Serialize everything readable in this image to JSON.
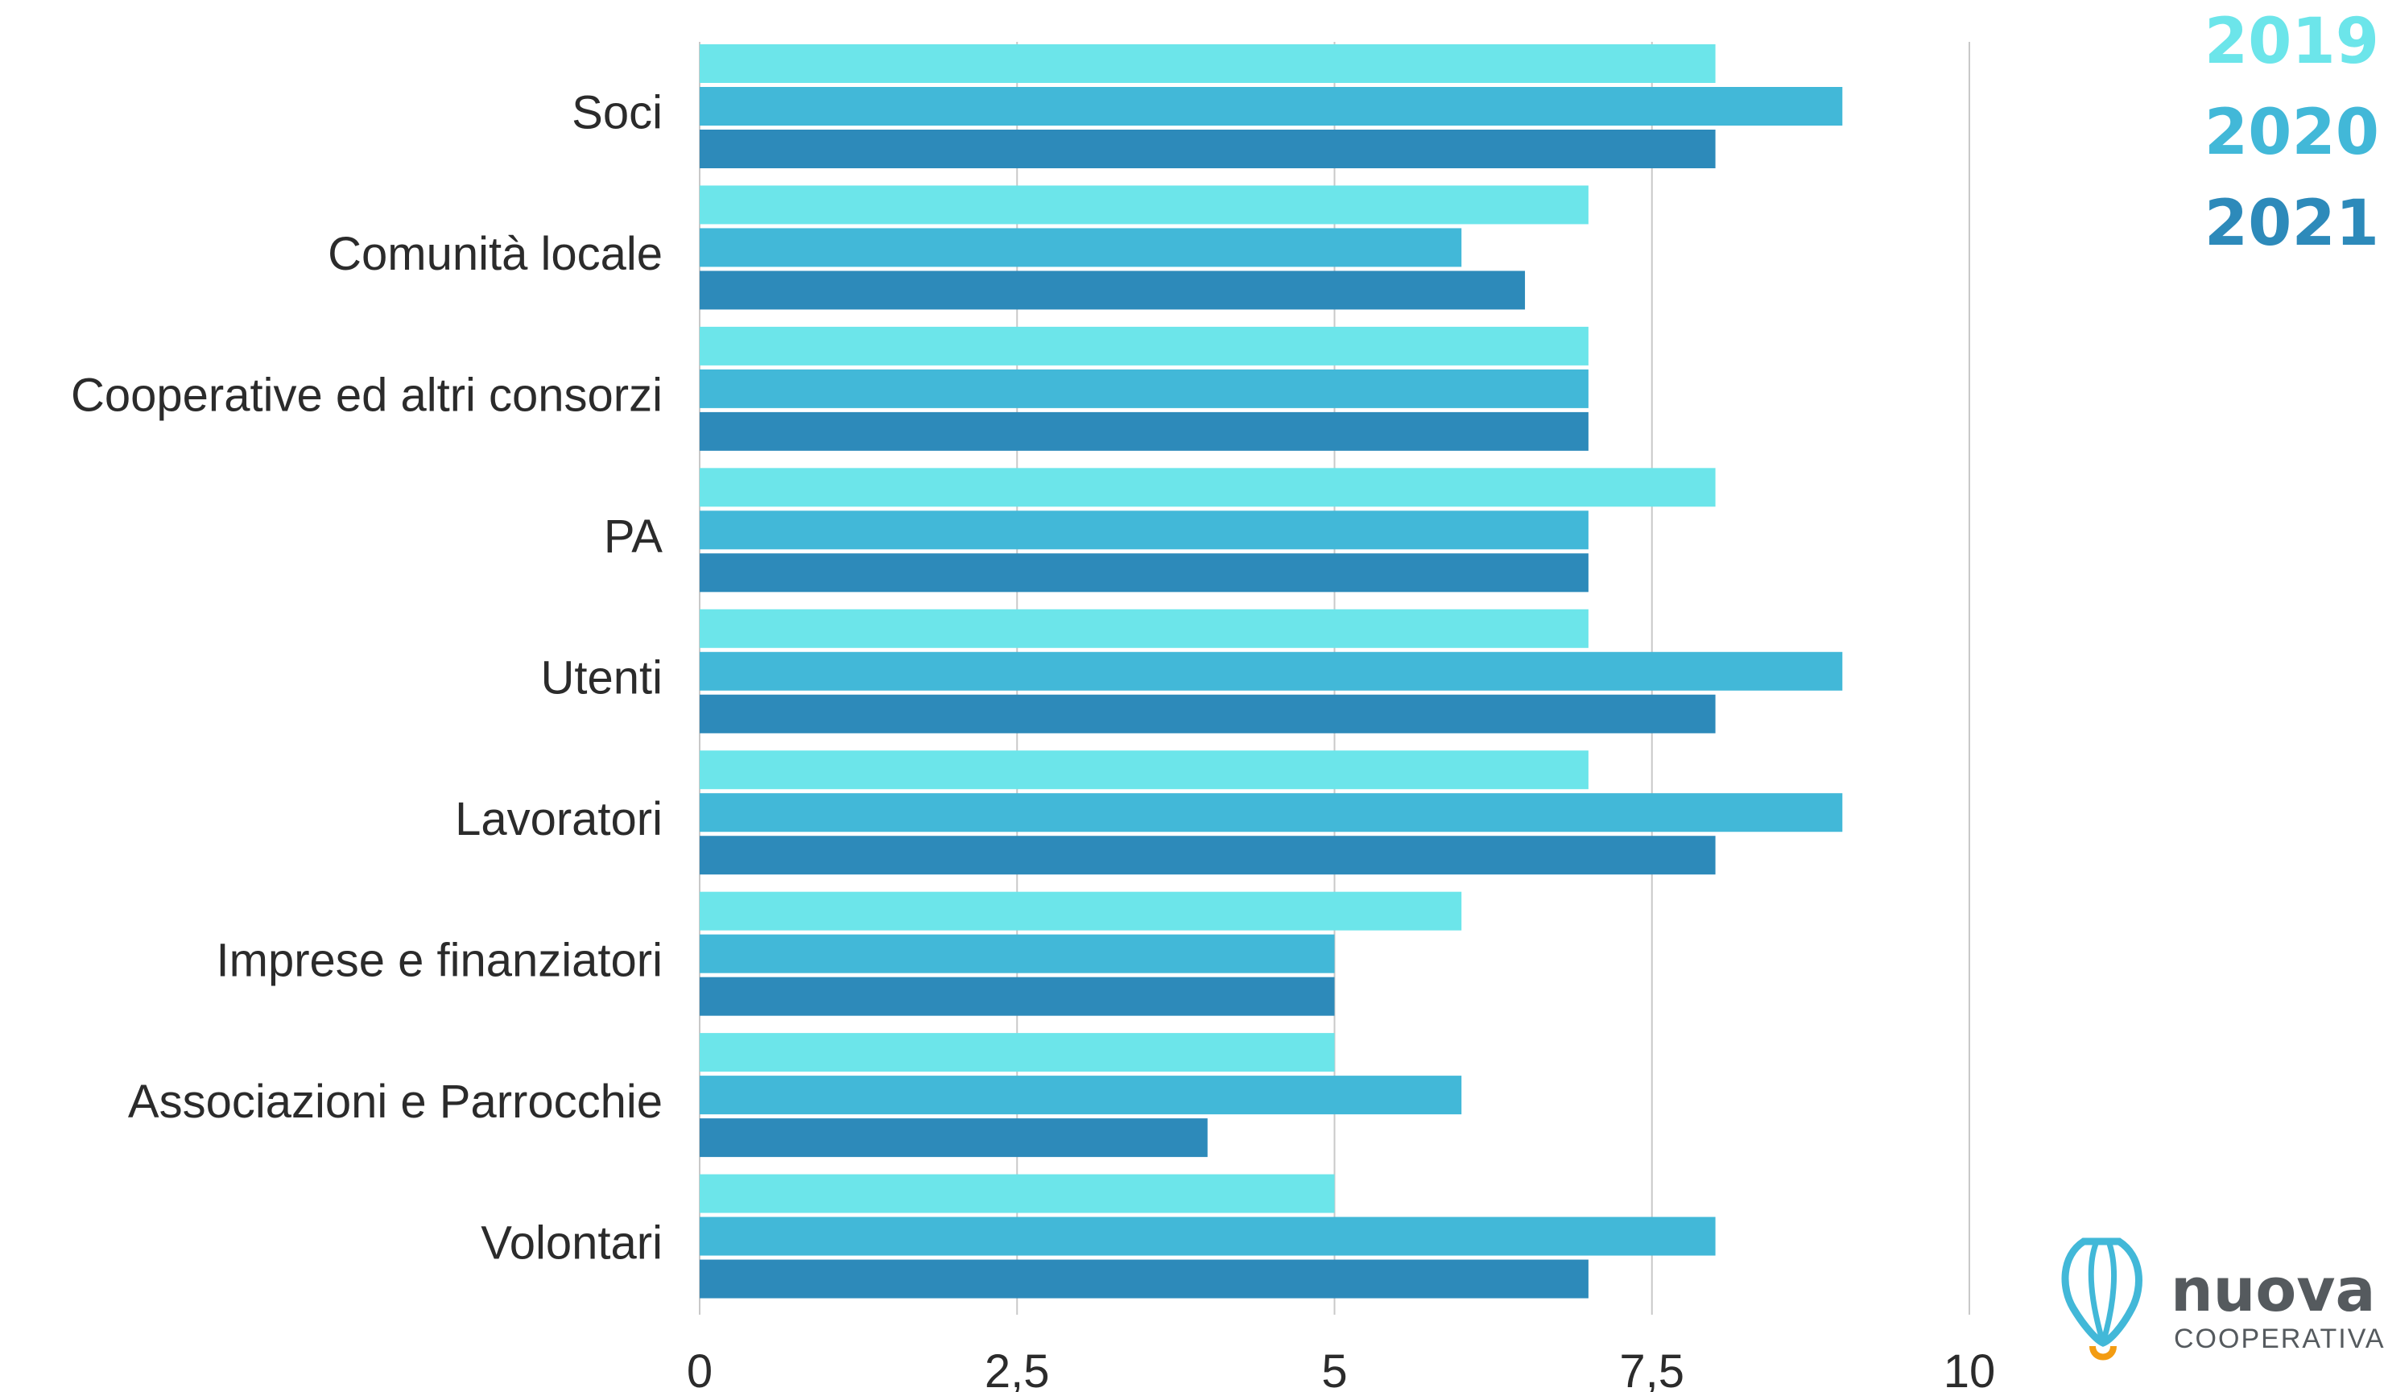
{
  "chart_data": {
    "type": "bar",
    "orientation": "horizontal",
    "categories": [
      "Soci",
      "Comunità locale",
      "Cooperative ed altri consorzi",
      "PA",
      "Utenti",
      "Lavoratori",
      "Imprese e finanziatori",
      "Associazioni e Parrocchie",
      "Volontari"
    ],
    "series": [
      {
        "name": "2019",
        "color": "#6ce5ea",
        "values": [
          8,
          7,
          7,
          8,
          7,
          7,
          6,
          5,
          5
        ]
      },
      {
        "name": "2020",
        "color": "#42b8d8",
        "values": [
          9,
          6,
          7,
          7,
          9,
          9,
          5,
          6,
          8
        ]
      },
      {
        "name": "2021",
        "color": "#2d8aba",
        "values": [
          8,
          6.5,
          7,
          7,
          8,
          8,
          5,
          4,
          7
        ]
      }
    ],
    "xlim": [
      0,
      10
    ],
    "xticks": [
      0,
      2.5,
      5,
      7.5,
      10
    ],
    "xtick_labels": [
      "0",
      "2,5",
      "5",
      "7,5",
      "10"
    ],
    "grid": "vertical",
    "legend_position": "top-right",
    "title": "",
    "xlabel": "",
    "ylabel": ""
  },
  "logo": {
    "name": "nuova",
    "subtitle": "COOPERATIVA"
  }
}
